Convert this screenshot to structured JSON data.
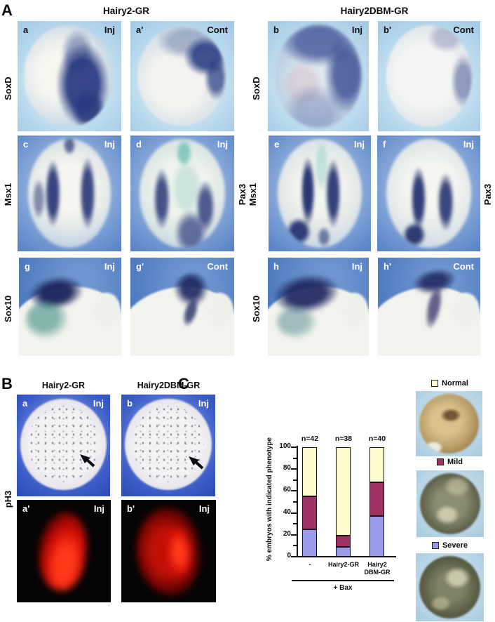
{
  "panelA": {
    "label": "A",
    "group_titles": [
      "Hairy2-GR",
      "Hairy2DBM-GR"
    ],
    "row1": {
      "left_label": "SoxD",
      "mid_label": "SoxD",
      "images": [
        {
          "id": "a",
          "tag": "Inj"
        },
        {
          "id": "a'",
          "tag": "Cont"
        },
        {
          "id": "b",
          "tag": "Inj"
        },
        {
          "id": "b'",
          "tag": "Cont"
        }
      ]
    },
    "row2": {
      "left_label": "Msx1",
      "mid_label_1": "Pax3",
      "mid_label_2": "Msx1",
      "right_label": "Pax3",
      "images": [
        {
          "id": "c",
          "tag": "Inj"
        },
        {
          "id": "d",
          "tag": "Inj"
        },
        {
          "id": "e",
          "tag": "Inj"
        },
        {
          "id": "f",
          "tag": "Inj"
        }
      ]
    },
    "row3": {
      "left_label": "Sox10",
      "mid_label": "Sox10",
      "images": [
        {
          "id": "g",
          "tag": "Inj"
        },
        {
          "id": "g'",
          "tag": "Cont"
        },
        {
          "id": "h",
          "tag": "Inj"
        },
        {
          "id": "h'",
          "tag": "Cont"
        }
      ]
    }
  },
  "panelB": {
    "label": "B",
    "group_titles": [
      "Hairy2-GR",
      "Hairy2DBM-GR"
    ],
    "row_label": "pH3",
    "images": [
      {
        "id": "a",
        "tag": "Inj"
      },
      {
        "id": "b",
        "tag": "Inj"
      },
      {
        "id": "a'",
        "tag": "Inj"
      },
      {
        "id": "b'",
        "tag": "Inj"
      }
    ]
  },
  "panelC": {
    "label": "C",
    "chart_data": {
      "type": "bar",
      "stacked": true,
      "title": "",
      "ylabel": "% embryos with indicated phenotype",
      "xlabel": "",
      "ylim": [
        0,
        100
      ],
      "yticks": [
        0,
        20,
        40,
        60,
        80,
        100
      ],
      "yticks_minor": [
        10,
        30,
        50,
        70,
        90
      ],
      "grid": false,
      "legend_position": "right",
      "categories": [
        "-",
        "Hairy2-GR",
        "Hairy2 DBM-GR"
      ],
      "x_labels": [
        {
          "line1": "-",
          "line2": ""
        },
        {
          "line1": "Hairy2-GR",
          "line2": ""
        },
        {
          "line1": "Hairy2",
          "line2": "DBM-GR"
        }
      ],
      "n_labels": [
        "n=42",
        "n=38",
        "n=40"
      ],
      "series": [
        {
          "name": "Severe",
          "color": "#9a9aec",
          "values": [
            25,
            9,
            37
          ]
        },
        {
          "name": "Mild",
          "color": "#9c3264",
          "values": [
            30,
            10,
            31
          ]
        },
        {
          "name": "Normal",
          "color": "#fdfdd0",
          "values": [
            45,
            81,
            32
          ]
        }
      ],
      "group_underline_label": "+ Bax"
    },
    "legend": {
      "items": [
        {
          "label": "Normal",
          "color": "#fdfdd0"
        },
        {
          "label": "Mild",
          "color": "#9c3264"
        },
        {
          "label": "Severe",
          "color": "#9a9aec"
        }
      ]
    }
  }
}
